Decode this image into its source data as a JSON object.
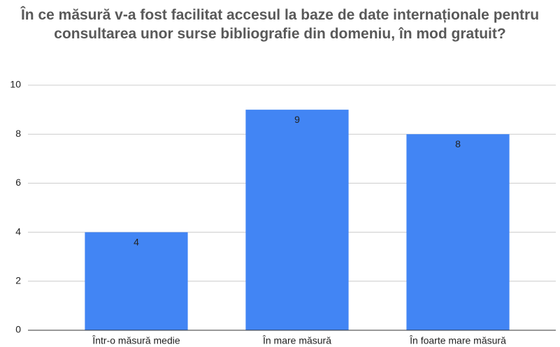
{
  "chart_data": {
    "type": "bar",
    "title": "În ce măsură v-a fost facilitat accesul la baze de date internaționale pentru consultarea unor surse bibliografie din domeniu, în mod gratuit?",
    "categories": [
      "Într-o măsură medie",
      "În mare măsură",
      "În foarte mare măsură"
    ],
    "values": [
      4,
      9,
      8
    ],
    "color": "#4285f4",
    "ylim": [
      0,
      10
    ],
    "yticks": [
      0,
      2,
      4,
      6,
      8,
      10
    ],
    "grid": true
  }
}
